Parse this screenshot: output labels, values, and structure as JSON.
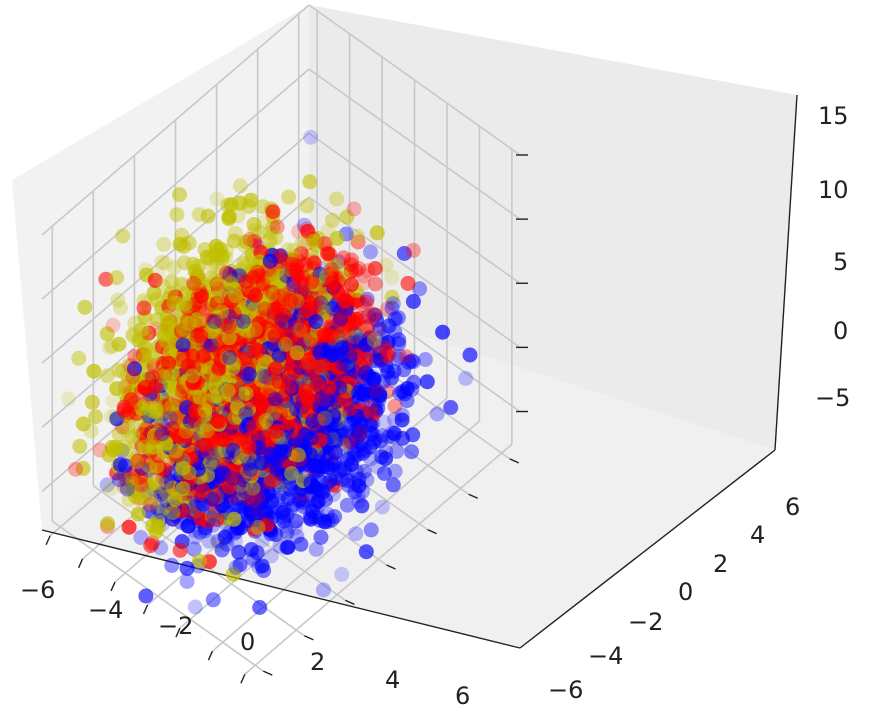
{
  "chart_data": {
    "type": "scatter",
    "projection": "3d",
    "title": "",
    "xlabel": "",
    "ylabel": "",
    "zlabel": "",
    "xlim": [
      -6.5,
      6.5
    ],
    "ylim": [
      -6.5,
      6.5
    ],
    "zlim": [
      -8,
      15
    ],
    "x_ticks": [
      "−6",
      "−4",
      "−2",
      "0",
      "2",
      "4",
      "6"
    ],
    "y_ticks": [
      "−6",
      "−4",
      "−2",
      "0",
      "2",
      "4",
      "6"
    ],
    "z_ticks": [
      "−5",
      "0",
      "5",
      "10",
      "15"
    ],
    "grid": true,
    "legend": "none",
    "colors": {
      "series_1": "#ff0000",
      "series_2": "#bfbf00",
      "series_3": "#0000ff",
      "pane": "#f2f2f2",
      "grid": "#c8c8c8"
    },
    "series": [
      {
        "color": "#ff0000",
        "count": 1500,
        "center": [
          -1.5,
          0,
          -1
        ],
        "spread": [
          1.8,
          2.2,
          3
        ]
      },
      {
        "color": "#bfbf00",
        "count": 1500,
        "center": [
          -2,
          -1,
          1
        ],
        "spread": [
          1.8,
          2.2,
          4
        ]
      },
      {
        "color": "#0000ff",
        "count": 1500,
        "center": [
          0.5,
          -0.5,
          -2
        ],
        "spread": [
          2.2,
          2.4,
          3
        ]
      }
    ]
  }
}
